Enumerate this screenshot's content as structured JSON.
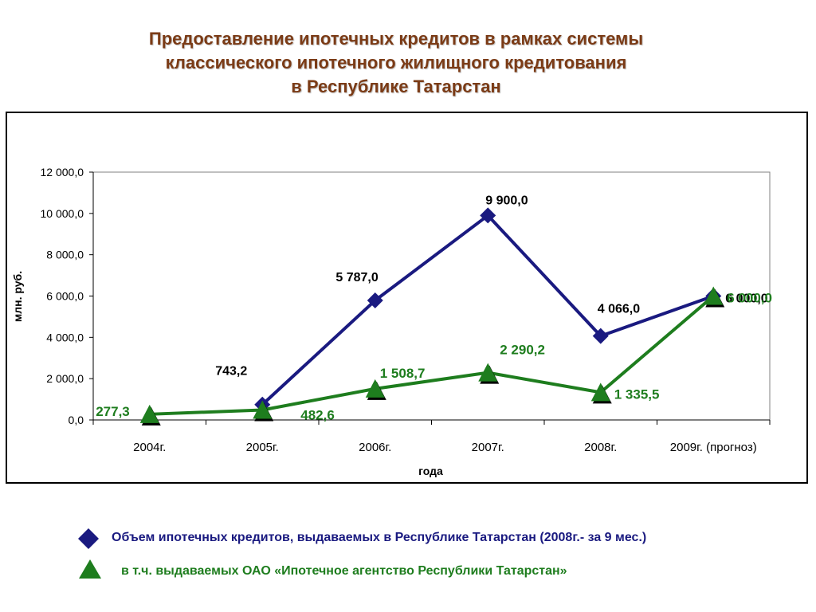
{
  "title": {
    "line1": "Предоставление ипотечных кредитов в рамках системы",
    "line2": "классического ипотечного жилищного кредитования",
    "line3": "в Республике Татарстан"
  },
  "chart_data": {
    "type": "line",
    "categories": [
      "2004г.",
      "2005г.",
      "2006г.",
      "2007г.",
      "2008г.",
      "2009г. (прогноз)"
    ],
    "xlabel": "года",
    "ylabel": "млн. руб.",
    "ylim": [
      0,
      12000
    ],
    "yticks": [
      "0,0",
      "2 000,0",
      "4 000,0",
      "6 000,0",
      "8 000,0",
      "10 000,0",
      "12 000,0"
    ],
    "grid": false,
    "legend_position": "bottom",
    "series": [
      {
        "name": "Объем ипотечных кредитов, выдаваемых в Республике Татарстан (2008г.- за 9 мес.)",
        "color": "#1A1A80",
        "marker": "diamond",
        "values": [
          null,
          743.2,
          5787.0,
          9900.0,
          4066.0,
          6000.0
        ],
        "labels": [
          null,
          "743,2",
          "5 787,0",
          "9 900,0",
          "4 066,0",
          "6 000,0"
        ]
      },
      {
        "name": "в т.ч. выдаваемых ОАО «Ипотечное агентство Республики Татарстан»",
        "color": "#1E7D1E",
        "marker": "triangle",
        "values": [
          277.3,
          482.6,
          1508.7,
          2290.2,
          1335.5,
          6000.0
        ],
        "labels": [
          "277,3",
          "482,6",
          "1 508,7",
          "2 290,2",
          "1 335,5",
          "6 000,0"
        ]
      }
    ]
  }
}
